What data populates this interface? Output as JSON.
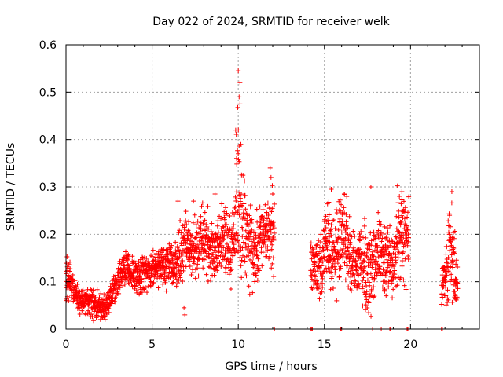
{
  "chart_data": {
    "type": "scatter",
    "title": "Day 022 of 2024, SRMTID for receiver welk",
    "xlabel": "GPS time / hours",
    "ylabel": "SRMTID / TECUs",
    "xlim": [
      0,
      24
    ],
    "ylim": [
      0,
      0.6
    ],
    "x_ticks": [
      0,
      5,
      10,
      15,
      20
    ],
    "x_tick_labels": [
      "0",
      "5",
      "10",
      "15",
      "20"
    ],
    "y_ticks": [
      0,
      0.1,
      0.2,
      0.3,
      0.4,
      0.5,
      0.6
    ],
    "y_tick_labels": [
      "0",
      "0.1",
      "0.2",
      "0.3",
      "0.4",
      "0.5",
      "0.6"
    ],
    "grid": true,
    "marker": "+",
    "color": "#ff0000",
    "profile_hours": [
      0,
      0.25,
      0.5,
      0.75,
      1.0,
      1.25,
      1.5,
      1.75,
      2.0,
      2.25,
      2.5,
      2.75,
      3.0,
      3.25,
      3.5,
      3.75,
      4.0,
      4.25,
      4.5,
      4.75,
      5.0,
      5.25,
      5.5,
      5.75,
      6.0,
      6.25,
      6.5,
      6.75,
      7.0,
      7.25,
      7.5,
      7.75,
      8.0,
      8.25,
      8.5,
      8.75,
      9.0,
      9.25,
      9.5,
      9.75,
      10.0,
      10.25,
      10.5,
      10.75,
      11.0,
      11.25,
      11.5,
      11.75,
      12.0,
      14.2,
      14.5,
      14.75,
      15.0,
      15.25,
      15.5,
      15.75,
      16.0,
      16.25,
      16.5,
      16.75,
      17.0,
      17.25,
      17.5,
      17.75,
      18.0,
      18.25,
      18.5,
      18.75,
      19.0,
      19.25,
      19.5,
      19.75,
      19.9,
      21.8,
      22.0,
      22.25,
      22.5,
      22.75
    ],
    "profile_center": [
      0.12,
      0.1,
      0.08,
      0.06,
      0.055,
      0.06,
      0.055,
      0.05,
      0.045,
      0.045,
      0.06,
      0.08,
      0.1,
      0.12,
      0.13,
      0.12,
      0.11,
      0.11,
      0.12,
      0.12,
      0.12,
      0.13,
      0.14,
      0.13,
      0.14,
      0.13,
      0.14,
      0.16,
      0.18,
      0.17,
      0.17,
      0.18,
      0.19,
      0.18,
      0.17,
      0.17,
      0.19,
      0.18,
      0.17,
      0.18,
      0.25,
      0.2,
      0.19,
      0.16,
      0.17,
      0.19,
      0.2,
      0.21,
      0.19,
      0.14,
      0.13,
      0.13,
      0.16,
      0.18,
      0.16,
      0.17,
      0.2,
      0.18,
      0.15,
      0.13,
      0.15,
      0.14,
      0.11,
      0.12,
      0.15,
      0.16,
      0.14,
      0.14,
      0.12,
      0.19,
      0.2,
      0.21,
      0.19,
      0.08,
      0.1,
      0.16,
      0.14,
      0.09
    ],
    "profile_spread": [
      0.05,
      0.04,
      0.03,
      0.03,
      0.03,
      0.03,
      0.03,
      0.03,
      0.03,
      0.03,
      0.03,
      0.03,
      0.04,
      0.04,
      0.04,
      0.03,
      0.04,
      0.04,
      0.04,
      0.04,
      0.04,
      0.04,
      0.05,
      0.05,
      0.05,
      0.05,
      0.07,
      0.07,
      0.07,
      0.07,
      0.07,
      0.07,
      0.08,
      0.07,
      0.07,
      0.07,
      0.07,
      0.07,
      0.07,
      0.08,
      0.25,
      0.12,
      0.1,
      0.08,
      0.07,
      0.07,
      0.07,
      0.08,
      0.1,
      0.05,
      0.06,
      0.08,
      0.1,
      0.1,
      0.08,
      0.1,
      0.12,
      0.1,
      0.08,
      0.06,
      0.08,
      0.1,
      0.08,
      0.08,
      0.08,
      0.08,
      0.08,
      0.08,
      0.08,
      0.1,
      0.1,
      0.1,
      0.08,
      0.05,
      0.08,
      0.12,
      0.1,
      0.04
    ],
    "gap_ranges": [
      [
        12.1,
        14.2
      ],
      [
        19.9,
        21.8
      ]
    ],
    "outliers": [
      [
        10.0,
        0.545
      ],
      [
        10.1,
        0.52
      ],
      [
        10.05,
        0.49
      ],
      [
        10.1,
        0.475
      ],
      [
        9.85,
        0.42
      ],
      [
        10.15,
        0.39
      ],
      [
        10.0,
        0.37
      ],
      [
        9.9,
        0.36
      ],
      [
        11.85,
        0.34
      ],
      [
        11.9,
        0.32
      ],
      [
        12.0,
        0.285
      ],
      [
        8.65,
        0.285
      ],
      [
        17.7,
        0.3
      ],
      [
        22.4,
        0.29
      ],
      [
        19.5,
        0.29
      ],
      [
        15.4,
        0.295
      ],
      [
        16.3,
        0.28
      ],
      [
        6.5,
        0.27
      ],
      [
        7.4,
        0.27
      ],
      [
        6.9,
        0.03
      ],
      [
        6.85,
        0.045
      ],
      [
        2.0,
        0.02
      ],
      [
        2.2,
        0.025
      ],
      [
        17.8,
        0.07
      ],
      [
        18.5,
        0.08
      ]
    ],
    "zero_markers": [
      12.1,
      14.2,
      14.25,
      14.3,
      15.95,
      16.0,
      17.8,
      18.3,
      18.8,
      18.85,
      19.8,
      19.85,
      21.8,
      21.85
    ]
  }
}
